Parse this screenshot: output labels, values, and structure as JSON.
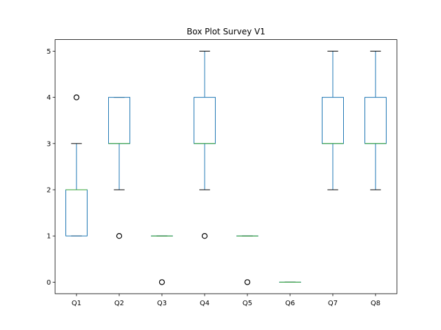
{
  "chart_data": {
    "type": "box",
    "title": "Box Plot Survey V1",
    "xlabel": "",
    "ylabel": "",
    "categories": [
      "Q1",
      "Q2",
      "Q3",
      "Q4",
      "Q5",
      "Q6",
      "Q7",
      "Q8"
    ],
    "ylim": [
      -0.25,
      5.25
    ],
    "yticks": [
      0,
      1,
      2,
      3,
      4,
      5
    ],
    "grid": false,
    "box_color": "#1f77b4",
    "median_color": "#2ca02c",
    "boxes": [
      {
        "name": "Q1",
        "whislo": 1,
        "q1": 1,
        "med": 2,
        "q3": 2,
        "whishi": 3,
        "fliers": [
          4
        ]
      },
      {
        "name": "Q2",
        "whislo": 2,
        "q1": 3,
        "med": 3,
        "q3": 4,
        "whishi": 4,
        "fliers": [
          1
        ]
      },
      {
        "name": "Q3",
        "whislo": 1,
        "q1": 1,
        "med": 1,
        "q3": 1,
        "whishi": 1,
        "fliers": [
          0
        ]
      },
      {
        "name": "Q4",
        "whislo": 2,
        "q1": 3,
        "med": 3,
        "q3": 4,
        "whishi": 5,
        "fliers": [
          1
        ]
      },
      {
        "name": "Q5",
        "whislo": 1,
        "q1": 1,
        "med": 1,
        "q3": 1,
        "whishi": 1,
        "fliers": [
          0
        ]
      },
      {
        "name": "Q6",
        "whislo": 0,
        "q1": 0,
        "med": 0,
        "q3": 0,
        "whishi": 0,
        "fliers": []
      },
      {
        "name": "Q7",
        "whislo": 2,
        "q1": 3,
        "med": 3,
        "q3": 4,
        "whishi": 5,
        "fliers": []
      },
      {
        "name": "Q8",
        "whislo": 2,
        "q1": 3,
        "med": 3,
        "q3": 4,
        "whishi": 5,
        "fliers": []
      }
    ]
  }
}
